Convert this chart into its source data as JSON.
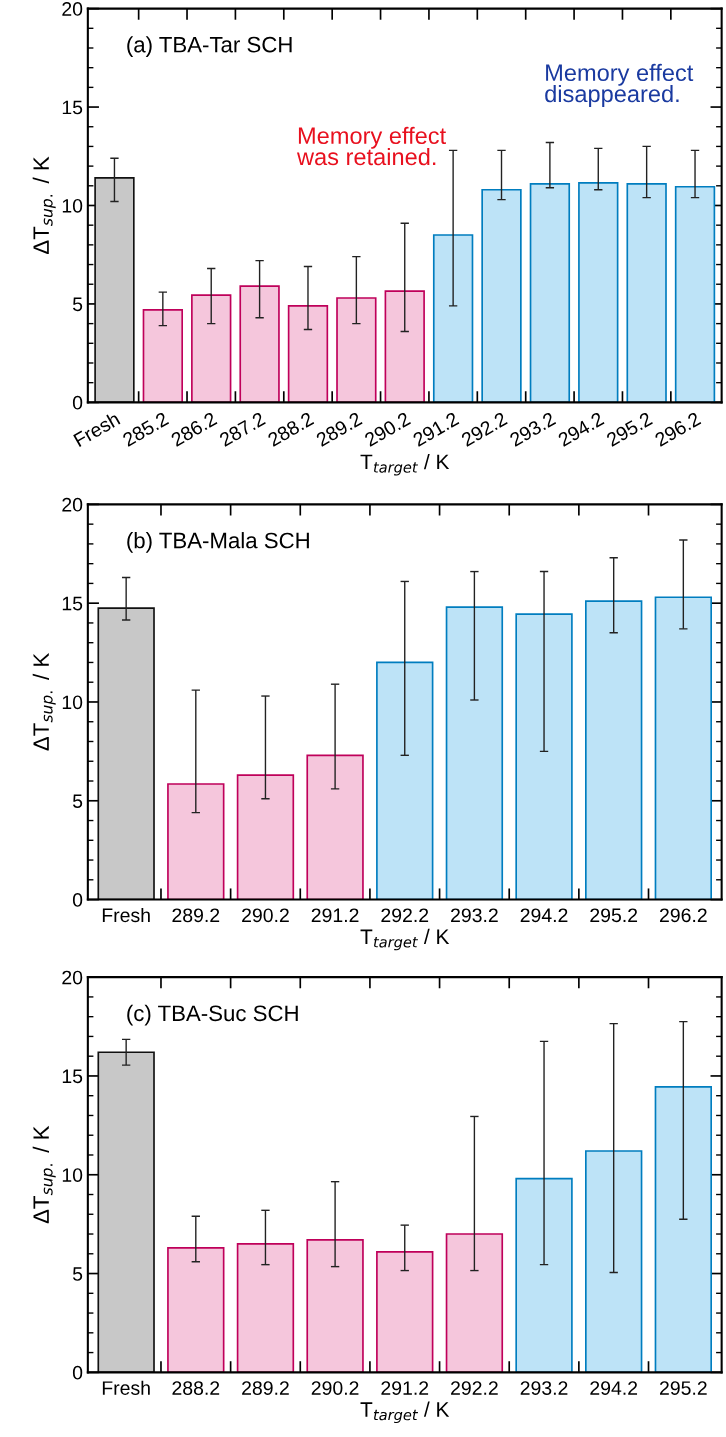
{
  "chart_data": [
    {
      "type": "bar",
      "title": "(a) TBA-Tar SCH",
      "xlabel": "T$_{target}$ / K",
      "ylabel": "ΔT$_{sup.}$ / K",
      "categories": [
        "Fresh",
        "285.2",
        "286.2",
        "287.2",
        "288.2",
        "289.2",
        "290.2",
        "291.2",
        "292.2",
        "293.2",
        "294.2",
        "295.2",
        "296.2"
      ],
      "values": [
        11.4,
        4.7,
        5.45,
        5.9,
        4.9,
        5.3,
        5.65,
        8.5,
        10.8,
        11.1,
        11.15,
        11.1,
        10.95
      ],
      "errors": [
        [
          10.2,
          12.4
        ],
        [
          3.9,
          5.6
        ],
        [
          4.0,
          6.8
        ],
        [
          4.3,
          7.2
        ],
        [
          3.7,
          6.9
        ],
        [
          4.0,
          7.4
        ],
        [
          3.6,
          9.1
        ],
        [
          4.9,
          12.8
        ],
        [
          10.3,
          12.8
        ],
        [
          10.9,
          13.2
        ],
        [
          10.8,
          12.9
        ],
        [
          10.4,
          13.0
        ],
        [
          10.4,
          12.8
        ]
      ],
      "colors": [
        "#c8c8c8",
        "#f5c6dc",
        "#f5c6dc",
        "#f5c6dc",
        "#f5c6dc",
        "#f5c6dc",
        "#f5c6dc",
        "#bde3f7",
        "#bde3f7",
        "#bde3f7",
        "#bde3f7",
        "#bde3f7",
        "#bde3f7"
      ],
      "annotations": [
        "Memory effect\nwas retained.",
        "Memory effect\ndisappeared."
      ],
      "ylim": [
        0,
        20
      ],
      "yticks": [
        0,
        5,
        10,
        15,
        20
      ],
      "grid": false,
      "legend": false
    },
    {
      "type": "bar",
      "title": "(b) TBA-Mala SCH",
      "xlabel": "T$_{target}$ / K",
      "ylabel": "ΔT$_{sup.}$ / K",
      "categories": [
        "Fresh",
        "289.2",
        "290.2",
        "291.2",
        "292.2",
        "293.2",
        "294.2",
        "295.2",
        "296.2"
      ],
      "values": [
        14.75,
        5.85,
        6.3,
        7.3,
        12.0,
        14.8,
        14.45,
        15.1,
        15.3
      ],
      "errors": [
        [
          14.15,
          16.3
        ],
        [
          4.4,
          10.6
        ],
        [
          5.1,
          10.3
        ],
        [
          5.6,
          10.9
        ],
        [
          7.3,
          16.1
        ],
        [
          10.1,
          16.6
        ],
        [
          7.5,
          16.6
        ],
        [
          13.5,
          17.3
        ],
        [
          13.7,
          18.2
        ]
      ],
      "colors": [
        "#c8c8c8",
        "#f5c6dc",
        "#f5c6dc",
        "#f5c6dc",
        "#bde3f7",
        "#bde3f7",
        "#bde3f7",
        "#bde3f7",
        "#bde3f7"
      ],
      "ylim": [
        0,
        20
      ],
      "yticks": [
        0,
        5,
        10,
        15,
        20
      ],
      "grid": false,
      "legend": false
    },
    {
      "type": "bar",
      "title": "(c) TBA-Suc SCH",
      "xlabel": "T$_{target}$ / K",
      "ylabel": "ΔT$_{sup.}$ / K",
      "categories": [
        "Fresh",
        "288.2",
        "289.2",
        "290.2",
        "291.2",
        "292.2",
        "293.2",
        "294.2",
        "295.2"
      ],
      "values": [
        16.2,
        6.3,
        6.5,
        6.7,
        6.1,
        7.0,
        9.8,
        11.2,
        14.45
      ],
      "errors": [
        [
          15.55,
          16.85
        ],
        [
          5.6,
          7.9
        ],
        [
          5.45,
          8.2
        ],
        [
          5.35,
          9.65
        ],
        [
          5.15,
          7.45
        ],
        [
          5.15,
          12.95
        ],
        [
          5.45,
          16.75
        ],
        [
          5.05,
          17.65
        ],
        [
          7.75,
          17.75
        ]
      ],
      "colors": [
        "#c8c8c8",
        "#f5c6dc",
        "#f5c6dc",
        "#f5c6dc",
        "#f5c6dc",
        "#f5c6dc",
        "#bde3f7",
        "#bde3f7",
        "#bde3f7"
      ],
      "ylim": [
        0,
        20
      ],
      "yticks": [
        0,
        5,
        10,
        15,
        20
      ],
      "grid": false,
      "legend": false
    }
  ]
}
